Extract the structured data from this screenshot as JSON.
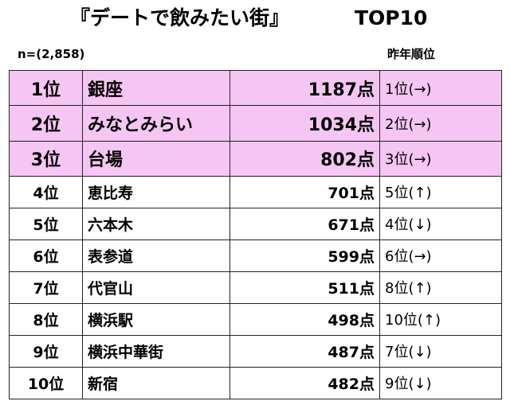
{
  "title": "『デートで飲みたい街』",
  "badge": "TOP10",
  "sample_size": "n=(2,858)",
  "prev_header": "昨年順位",
  "rows": [
    {
      "rank": "1位",
      "name": "銀座",
      "points": "1187点",
      "prev": "1位(→)"
    },
    {
      "rank": "2位",
      "name": "みなとみらい",
      "points": "1034点",
      "prev": "2位(→)"
    },
    {
      "rank": "3位",
      "name": "台場",
      "points": "802点",
      "prev": "3位(→)"
    },
    {
      "rank": "4位",
      "name": "恵比寿",
      "points": "701点",
      "prev": "5位(↑)"
    },
    {
      "rank": "5位",
      "name": "六本木",
      "points": "671点",
      "prev": "4位(↓)"
    },
    {
      "rank": "6位",
      "name": "表参道",
      "points": "599点",
      "prev": "6位(→)"
    },
    {
      "rank": "7位",
      "name": "代官山",
      "points": "511点",
      "prev": "8位(↑)"
    },
    {
      "rank": "8位",
      "name": "横浜駅",
      "points": "498点",
      "prev": "10位(↑)"
    },
    {
      "rank": "9位",
      "name": "横浜中華街",
      "points": "487点",
      "prev": "7位(↓)"
    },
    {
      "rank": "10位",
      "name": "新宿",
      "points": "482点",
      "prev": "9位(↓)"
    }
  ],
  "colors": {
    "highlight": "#f5c6f3",
    "border": "#222222"
  }
}
